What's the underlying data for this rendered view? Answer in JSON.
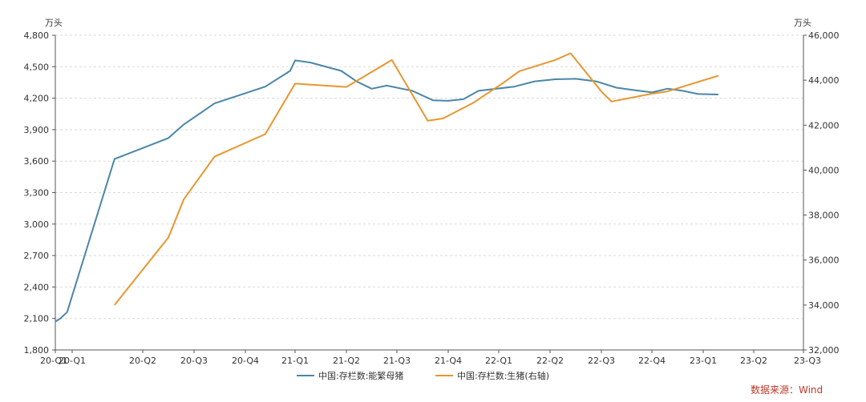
{
  "chart_data": {
    "type": "line",
    "left_unit": "万头",
    "right_unit": "万头",
    "x_tick_labels": [
      "20-Q1",
      "20-Q1",
      "20-Q2",
      "20-Q3",
      "20-Q4",
      "21-Q1",
      "21-Q2",
      "21-Q3",
      "21-Q4",
      "22-Q1",
      "22-Q2",
      "22-Q3",
      "22-Q4",
      "23-Q1",
      "23-Q2",
      "23-Q3"
    ],
    "y_left": {
      "min": 1800,
      "max": 4800,
      "ticks": [
        "1,800",
        "2,100",
        "2,400",
        "2,700",
        "3,000",
        "3,300",
        "3,600",
        "3,900",
        "4,200",
        "4,500",
        "4,800"
      ]
    },
    "y_right": {
      "min": 32000,
      "max": 46000,
      "ticks": [
        "32,000",
        "34,000",
        "36,000",
        "38,000",
        "40,000",
        "42,000",
        "44,000",
        "46,000"
      ]
    },
    "grid": true,
    "legend_position": "bottom",
    "series": [
      {
        "name": "中国:存栏数:能繁母猪",
        "axis": "left",
        "color": "#4a86a8",
        "points": [
          [
            0,
            2070
          ],
          [
            0.3,
            2100
          ],
          [
            0.7,
            2160
          ],
          [
            1.6,
            3620
          ],
          [
            2.5,
            3820
          ],
          [
            2.8,
            3950
          ],
          [
            3.4,
            4150
          ],
          [
            4.4,
            4310
          ],
          [
            4.9,
            4460
          ],
          [
            5.0,
            4560
          ],
          [
            5.3,
            4540
          ],
          [
            5.9,
            4460
          ],
          [
            6.2,
            4360
          ],
          [
            6.5,
            4290
          ],
          [
            6.8,
            4320
          ],
          [
            7.3,
            4270
          ],
          [
            7.7,
            4180
          ],
          [
            8.0,
            4175
          ],
          [
            8.3,
            4190
          ],
          [
            8.6,
            4270
          ],
          [
            9.3,
            4310
          ],
          [
            9.7,
            4360
          ],
          [
            10.1,
            4380
          ],
          [
            10.5,
            4385
          ],
          [
            10.9,
            4360
          ],
          [
            11.3,
            4300
          ],
          [
            11.6,
            4280
          ],
          [
            12.0,
            4255
          ],
          [
            12.3,
            4290
          ],
          [
            12.6,
            4270
          ],
          [
            12.9,
            4240
          ],
          [
            13.3,
            4235
          ]
        ]
      },
      {
        "name": "中国:存栏数:生猪(右轴)",
        "axis": "right",
        "color": "#e8962e",
        "points": [
          [
            1.6,
            34000
          ],
          [
            2.5,
            37000
          ],
          [
            2.8,
            38700
          ],
          [
            3.4,
            40600
          ],
          [
            4.4,
            41600
          ],
          [
            5.0,
            43850
          ],
          [
            6.0,
            43700
          ],
          [
            6.9,
            44900
          ],
          [
            7.6,
            42200
          ],
          [
            7.9,
            42300
          ],
          [
            8.5,
            43000
          ],
          [
            9.1,
            43900
          ],
          [
            9.4,
            44400
          ],
          [
            10.1,
            44900
          ],
          [
            10.4,
            45200
          ],
          [
            11.0,
            43500
          ],
          [
            11.2,
            43050
          ],
          [
            12.0,
            43400
          ],
          [
            12.3,
            43500
          ],
          [
            13.3,
            44200
          ]
        ]
      }
    ]
  },
  "source_text": "数据来源：Wind"
}
